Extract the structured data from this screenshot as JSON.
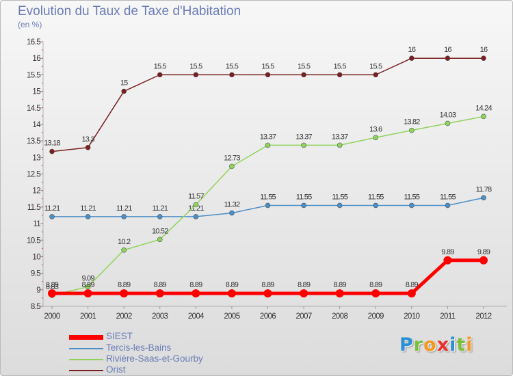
{
  "title": "Evolution du Taux de Taxe d'Habitation",
  "subtitle": "(en %)",
  "logo": {
    "letters": [
      "P",
      "r",
      "o",
      "x",
      "i",
      "t",
      "i"
    ],
    "colors": [
      "#2a8fd4",
      "#7abf3a",
      "#f39a1e",
      "#e8322b",
      "#2a8fd4",
      "#7abf3a",
      "#f39a1e"
    ]
  },
  "chart_data": {
    "type": "line",
    "title": "Evolution du Taux de Taxe d'Habitation",
    "ylabel": "(en %)",
    "xlabel": "",
    "x": [
      "2000",
      "2001",
      "2002",
      "2003",
      "2004",
      "2005",
      "2006",
      "2007",
      "2008",
      "2009",
      "2010",
      "2011",
      "2012"
    ],
    "ylim": [
      8.5,
      16.5
    ],
    "yticks": [
      "8.5",
      "9",
      "9.5",
      "10",
      "10.5",
      "11",
      "11.5",
      "12",
      "12.5",
      "13",
      "13.5",
      "14",
      "14.5",
      "15",
      "15.5",
      "16",
      "16.5"
    ],
    "grid": false,
    "legend_position": "bottom-left",
    "series": [
      {
        "name": "SIEST",
        "color": "#ff0000",
        "values": [
          8.89,
          8.89,
          8.89,
          8.89,
          8.89,
          8.89,
          8.89,
          8.89,
          8.89,
          8.89,
          8.89,
          9.89,
          9.89
        ],
        "labels": [
          "8.89",
          "8.89",
          "8.89",
          "8.89",
          "8.89",
          "8.89",
          "8.89",
          "8.89",
          "8.89",
          "8.89",
          "8.89",
          "9.89",
          "9.89"
        ]
      },
      {
        "name": "Tercis-les-Bains",
        "color": "#4a8fc8",
        "values": [
          11.21,
          11.21,
          11.21,
          11.21,
          11.21,
          11.32,
          11.55,
          11.55,
          11.55,
          11.55,
          11.55,
          11.55,
          11.78
        ],
        "labels": [
          "11.21",
          "11.21",
          "11.21",
          "11.21",
          "11.21",
          "11.32",
          "11.55",
          "11.55",
          "11.55",
          "11.55",
          "11.55",
          "11.55",
          "11.78"
        ]
      },
      {
        "name": "Rivière-Saas-et-Gourby",
        "color": "#8fd45a",
        "values": [
          8.83,
          9.09,
          10.2,
          10.52,
          11.57,
          12.73,
          13.37,
          13.37,
          13.37,
          13.6,
          13.82,
          14.03,
          14.24
        ],
        "labels": [
          "8.83",
          "9.09",
          "10.2",
          "10.52",
          "11.57",
          "12.73",
          "13.37",
          "13.37",
          "13.37",
          "13.6",
          "13.82",
          "14.03",
          "14.24"
        ]
      },
      {
        "name": "Orist",
        "color": "#7a1f1f",
        "values": [
          13.18,
          13.3,
          15,
          15.5,
          15.5,
          15.5,
          15.5,
          15.5,
          15.5,
          15.5,
          16,
          16,
          16
        ],
        "labels": [
          "13.18",
          "13.3",
          "15",
          "15.5",
          "15.5",
          "15.5",
          "15.5",
          "15.5",
          "15.5",
          "15.5",
          "16",
          "16",
          "16"
        ]
      }
    ]
  }
}
